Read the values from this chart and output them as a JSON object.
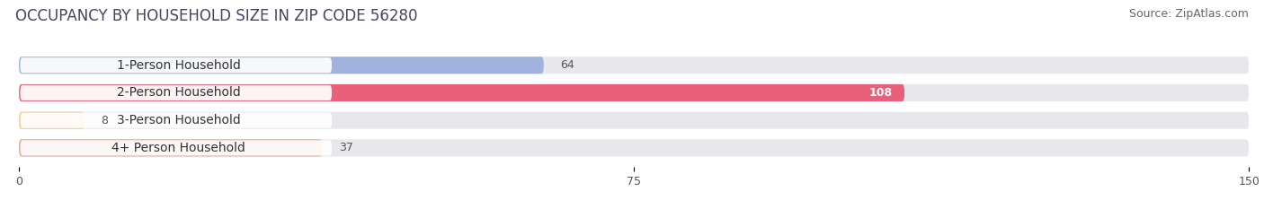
{
  "title": "OCCUPANCY BY HOUSEHOLD SIZE IN ZIP CODE 56280",
  "source": "Source: ZipAtlas.com",
  "categories": [
    "1-Person Household",
    "2-Person Household",
    "3-Person Household",
    "4+ Person Household"
  ],
  "values": [
    64,
    108,
    8,
    37
  ],
  "bar_colors": [
    "#9fb3de",
    "#e8607a",
    "#f5c98a",
    "#e8a090"
  ],
  "xlim": [
    0,
    150
  ],
  "xticks": [
    0,
    75,
    150
  ],
  "bg_color": "#ffffff",
  "bar_bg_color": "#e8e8ec",
  "title_fontsize": 12,
  "source_fontsize": 9,
  "label_fontsize": 10,
  "value_fontsize": 9,
  "tick_fontsize": 9,
  "bar_height": 0.62,
  "figsize": [
    14.06,
    2.33
  ]
}
